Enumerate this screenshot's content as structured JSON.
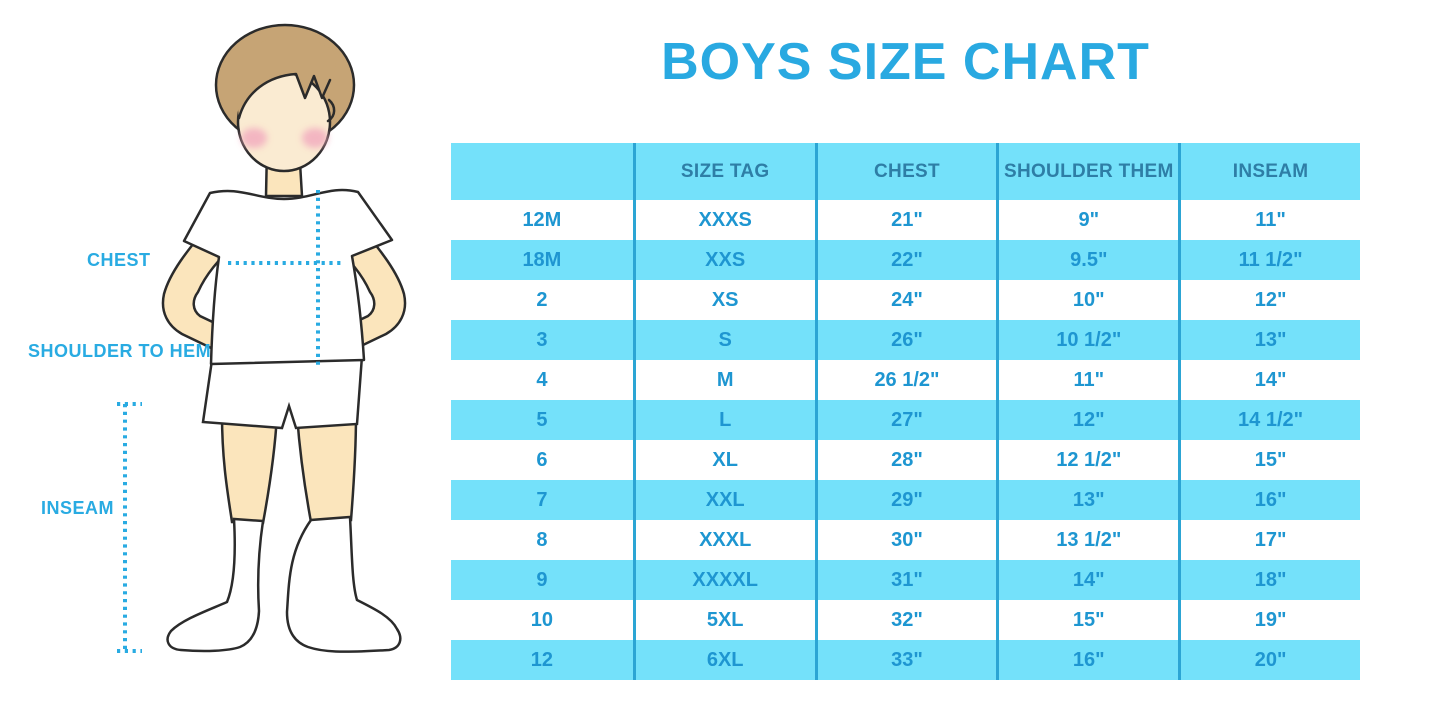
{
  "title": "BOYS SIZE CHART",
  "figure": {
    "labels": {
      "chest": "CHEST",
      "shoulder_to_hem": "SHOULDER TO HEM",
      "inseam": "INSEAM"
    },
    "illustration": "boy-standing-hands-on-hips-with-dotted-measurement-lines"
  },
  "chart_data": {
    "type": "table",
    "title": "BOYS SIZE CHART",
    "columns": [
      "",
      "SIZE TAG",
      "CHEST",
      "SHOULDER THEM",
      "INSEAM"
    ],
    "rows": [
      [
        "12M",
        "XXXS",
        "21\"",
        "9\"",
        "11\""
      ],
      [
        "18M",
        "XXS",
        "22\"",
        "9.5\"",
        "11 1/2\""
      ],
      [
        "2",
        "XS",
        "24\"",
        "10\"",
        "12\""
      ],
      [
        "3",
        "S",
        "26\"",
        "10 1/2\"",
        "13\""
      ],
      [
        "4",
        "M",
        "26 1/2\"",
        "11\"",
        "14\""
      ],
      [
        "5",
        "L",
        "27\"",
        "12\"",
        "14 1/2\""
      ],
      [
        "6",
        "XL",
        "28\"",
        "12 1/2\"",
        "15\""
      ],
      [
        "7",
        "XXL",
        "29\"",
        "13\"",
        "16\""
      ],
      [
        "8",
        "XXXL",
        "30\"",
        "13 1/2\"",
        "17\""
      ],
      [
        "9",
        "XXXXL",
        "31\"",
        "14\"",
        "18\""
      ],
      [
        "10",
        "5XL",
        "32\"",
        "15\"",
        "19\""
      ],
      [
        "12",
        "6XL",
        "33\"",
        "16\"",
        "20\""
      ]
    ],
    "layout_hints": {
      "striped_rows": "alternating white and light blue, header light blue",
      "grid": "vertical column dividers only"
    }
  },
  "colors": {
    "title_text": "#29A9E1",
    "accent_labels": "#29ABE2",
    "table_text": "#1E96D1",
    "header_text": "#2E7EA6",
    "row_highlight": "#74E1FA",
    "column_divider": "#2CA5D4",
    "skin": "#FBE5BC",
    "face": "#FAEBD2",
    "hair": "#C6A475",
    "cheek": "#F2A9BE",
    "outline": "#2B2B2B",
    "garment_white": "#FFFFFF"
  }
}
